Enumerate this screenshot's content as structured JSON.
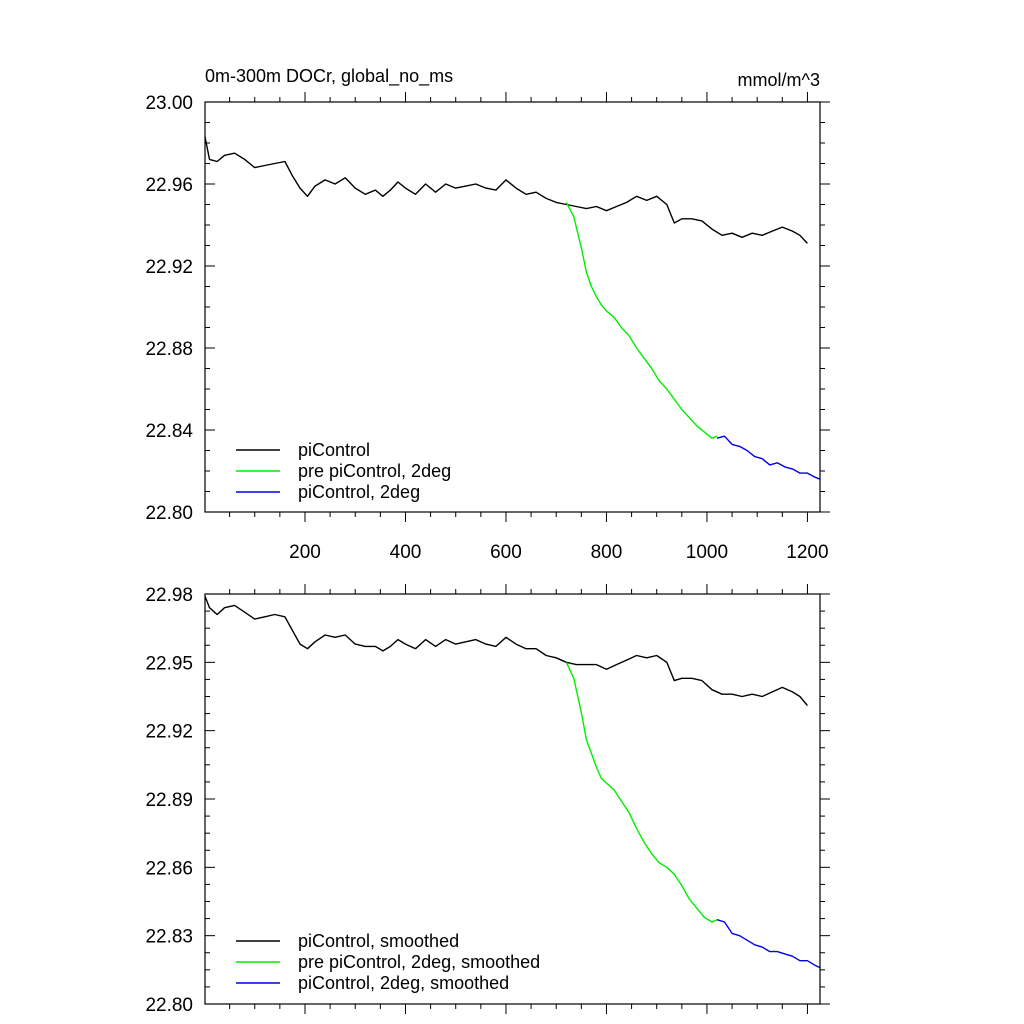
{
  "chart_data": [
    {
      "type": "line",
      "title": "0m-300m DOCr, global_no_ms",
      "units": "mmol/m^3",
      "xlim": [
        1,
        1225
      ],
      "ylim": [
        22.8,
        23.0
      ],
      "x_ticks": [
        200,
        400,
        600,
        800,
        1000,
        1200
      ],
      "y_ticks": [
        22.8,
        22.84,
        22.88,
        22.92,
        22.96,
        23.0
      ],
      "y_tick_labels": [
        "22.80",
        "22.84",
        "22.88",
        "22.92",
        "22.96",
        "23.00"
      ],
      "legend_position": "bottom-left",
      "series": [
        {
          "name": "piControl",
          "color": "#000000",
          "x": [
            1,
            10,
            25,
            40,
            60,
            80,
            100,
            120,
            140,
            160,
            175,
            190,
            205,
            220,
            240,
            260,
            280,
            300,
            320,
            340,
            355,
            370,
            385,
            400,
            420,
            440,
            460,
            480,
            500,
            520,
            540,
            560,
            580,
            600,
            620,
            640,
            660,
            680,
            700,
            720,
            740,
            760,
            780,
            800,
            820,
            840,
            860,
            880,
            900,
            920,
            935,
            950,
            970,
            990,
            1010,
            1030,
            1050,
            1070,
            1090,
            1110,
            1130,
            1150,
            1170,
            1185,
            1200
          ],
          "y": [
            22.983,
            22.972,
            22.971,
            22.974,
            22.975,
            22.972,
            22.968,
            22.969,
            22.97,
            22.971,
            22.964,
            22.958,
            22.954,
            22.959,
            22.962,
            22.96,
            22.963,
            22.958,
            22.955,
            22.957,
            22.954,
            22.957,
            22.961,
            22.958,
            22.955,
            22.96,
            22.956,
            22.96,
            22.958,
            22.959,
            22.96,
            22.958,
            22.957,
            22.962,
            22.958,
            22.955,
            22.956,
            22.953,
            22.951,
            22.95,
            22.949,
            22.948,
            22.949,
            22.947,
            22.949,
            22.951,
            22.954,
            22.952,
            22.954,
            22.95,
            22.941,
            22.943,
            22.943,
            22.942,
            22.938,
            22.935,
            22.936,
            22.934,
            22.936,
            22.935,
            22.937,
            22.939,
            22.937,
            22.935,
            22.931
          ]
        },
        {
          "name": "pre piControl, 2deg",
          "color": "#00ee00",
          "x": [
            720,
            735,
            750,
            760,
            770,
            780,
            790,
            800,
            815,
            830,
            845,
            860,
            875,
            890,
            905,
            920,
            935,
            950,
            965,
            980,
            995,
            1010,
            1020
          ],
          "y": [
            22.951,
            22.944,
            22.929,
            22.917,
            22.91,
            22.905,
            22.901,
            22.898,
            22.895,
            22.89,
            22.886,
            22.88,
            22.875,
            22.87,
            22.864,
            22.86,
            22.855,
            22.85,
            22.846,
            22.842,
            22.839,
            22.836,
            22.837
          ]
        },
        {
          "name": "piControl, 2deg",
          "color": "#0000ee",
          "x": [
            1020,
            1035,
            1050,
            1065,
            1080,
            1095,
            1110,
            1125,
            1140,
            1155,
            1170,
            1185,
            1200,
            1215,
            1225
          ],
          "y": [
            22.836,
            22.837,
            22.833,
            22.832,
            22.83,
            22.827,
            22.826,
            22.823,
            22.824,
            22.822,
            22.821,
            22.819,
            22.819,
            22.817,
            22.816
          ]
        }
      ]
    },
    {
      "type": "line",
      "xlim": [
        1,
        1225
      ],
      "ylim": [
        22.8,
        22.98
      ],
      "y_ticks": [
        22.8,
        22.83,
        22.86,
        22.89,
        22.92,
        22.95,
        22.98
      ],
      "y_tick_labels": [
        "22.80",
        "22.83",
        "22.86",
        "22.89",
        "22.92",
        "22.95",
        "22.98"
      ],
      "x_ticks": [
        200,
        400,
        600,
        800,
        1000,
        1200
      ],
      "legend_position": "bottom-left",
      "series": [
        {
          "name": "piControl, smoothed",
          "color": "#000000",
          "x": [
            1,
            10,
            25,
            40,
            60,
            80,
            100,
            120,
            140,
            160,
            175,
            190,
            205,
            220,
            240,
            260,
            280,
            300,
            320,
            340,
            355,
            370,
            385,
            400,
            420,
            440,
            460,
            480,
            500,
            520,
            540,
            560,
            580,
            600,
            620,
            640,
            660,
            680,
            700,
            720,
            740,
            760,
            780,
            800,
            820,
            840,
            860,
            880,
            900,
            920,
            935,
            950,
            970,
            990,
            1010,
            1030,
            1050,
            1070,
            1090,
            1110,
            1130,
            1150,
            1170,
            1185,
            1200
          ],
          "y": [
            22.979,
            22.974,
            22.971,
            22.974,
            22.975,
            22.972,
            22.969,
            22.97,
            22.971,
            22.97,
            22.964,
            22.958,
            22.956,
            22.959,
            22.962,
            22.961,
            22.962,
            22.958,
            22.957,
            22.957,
            22.955,
            22.957,
            22.96,
            22.958,
            22.956,
            22.96,
            22.957,
            22.96,
            22.958,
            22.959,
            22.96,
            22.958,
            22.957,
            22.961,
            22.958,
            22.956,
            22.956,
            22.953,
            22.952,
            22.95,
            22.949,
            22.949,
            22.949,
            22.947,
            22.949,
            22.951,
            22.953,
            22.952,
            22.953,
            22.95,
            22.942,
            22.943,
            22.943,
            22.942,
            22.938,
            22.936,
            22.936,
            22.935,
            22.936,
            22.935,
            22.937,
            22.939,
            22.937,
            22.935,
            22.931
          ]
        },
        {
          "name": "pre piControl, 2deg, smoothed",
          "color": "#00ee00",
          "x": [
            720,
            735,
            750,
            760,
            770,
            780,
            790,
            800,
            815,
            830,
            845,
            860,
            875,
            890,
            905,
            920,
            935,
            950,
            965,
            980,
            995,
            1010,
            1020
          ],
          "y": [
            22.95,
            22.943,
            22.928,
            22.916,
            22.91,
            22.904,
            22.899,
            22.897,
            22.894,
            22.889,
            22.884,
            22.877,
            22.871,
            22.866,
            22.862,
            22.86,
            22.857,
            22.852,
            22.846,
            22.842,
            22.838,
            22.836,
            22.837
          ]
        },
        {
          "name": "piControl, 2deg, smoothed",
          "color": "#0000ee",
          "x": [
            1020,
            1035,
            1050,
            1065,
            1080,
            1095,
            1110,
            1125,
            1140,
            1155,
            1170,
            1185,
            1200,
            1215,
            1225
          ],
          "y": [
            22.837,
            22.836,
            22.831,
            22.83,
            22.828,
            22.826,
            22.825,
            22.823,
            22.823,
            22.822,
            22.821,
            22.819,
            22.819,
            22.817,
            22.816
          ]
        }
      ]
    }
  ]
}
